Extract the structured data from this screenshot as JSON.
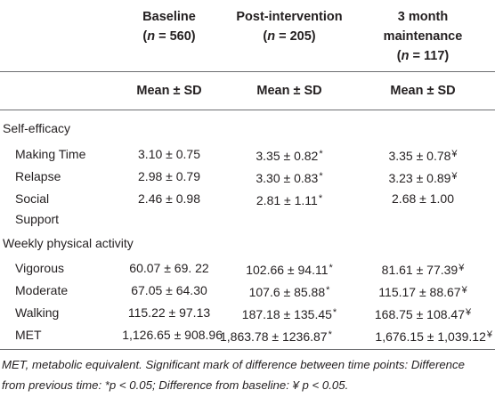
{
  "columns": [
    {
      "title": "Baseline",
      "n_label": "n",
      "n_value": " = 560)"
    },
    {
      "title": "Post-intervention",
      "n_label": "n",
      "n_value": " = 205)"
    },
    {
      "title": "3 month maintenance",
      "title_line1": "3 month",
      "title_line2": "maintenance",
      "n_label": "n",
      "n_value": " = 117)"
    }
  ],
  "subheaders": [
    "Mean ± SD",
    "Mean ± SD",
    "Mean ± SD"
  ],
  "sections": [
    {
      "title": "Self-efficacy",
      "rows": [
        {
          "label": "Making Time",
          "values": [
            "3.10 ± 0.75",
            "3.35 ± 0.82",
            "3.35 ± 0.78"
          ],
          "marks": [
            "",
            "*",
            "¥"
          ]
        },
        {
          "label": "Relapse",
          "values": [
            "2.98 ± 0.79",
            "3.30 ± 0.83",
            "3.23 ± 0.89"
          ],
          "marks": [
            "",
            "*",
            "¥"
          ]
        },
        {
          "label": "Social Support",
          "label_line1": "Social",
          "label_line2": "Support",
          "values": [
            "2.46 ± 0.98",
            "2.81 ± 1.11",
            "2.68 ± 1.00"
          ],
          "marks": [
            "",
            "*",
            ""
          ]
        }
      ]
    },
    {
      "title": "Weekly physical activity",
      "rows": [
        {
          "label": "Vigorous",
          "values": [
            "60.07 ± 69. 22",
            "102.66 ± 94.11",
            "81.61 ± 77.39"
          ],
          "marks": [
            "",
            "*",
            "¥"
          ]
        },
        {
          "label": "Moderate",
          "values": [
            "67.05 ± 64.30",
            "107.6 ± 85.88",
            "115.17 ± 88.67"
          ],
          "marks": [
            "",
            "*",
            "¥"
          ]
        },
        {
          "label": "Walking",
          "values": [
            "115.22 ± 97.13",
            "187.18 ± 135.45",
            "168.75 ± 108.47"
          ],
          "marks": [
            "",
            "*",
            "¥"
          ]
        },
        {
          "label": "MET",
          "values": [
            "1,126.65 ± 908.96",
            "1,863.78 ± 1236.87",
            "1,676.15 ± 1,039.12"
          ],
          "marks": [
            "",
            "*",
            "¥"
          ]
        }
      ]
    }
  ],
  "footnote": {
    "line1": "MET, metabolic equivalent. Significant mark of difference between time points: Difference",
    "line2": "from previous time: *p < 0.05; Difference from baseline: ¥ p < 0.05."
  }
}
